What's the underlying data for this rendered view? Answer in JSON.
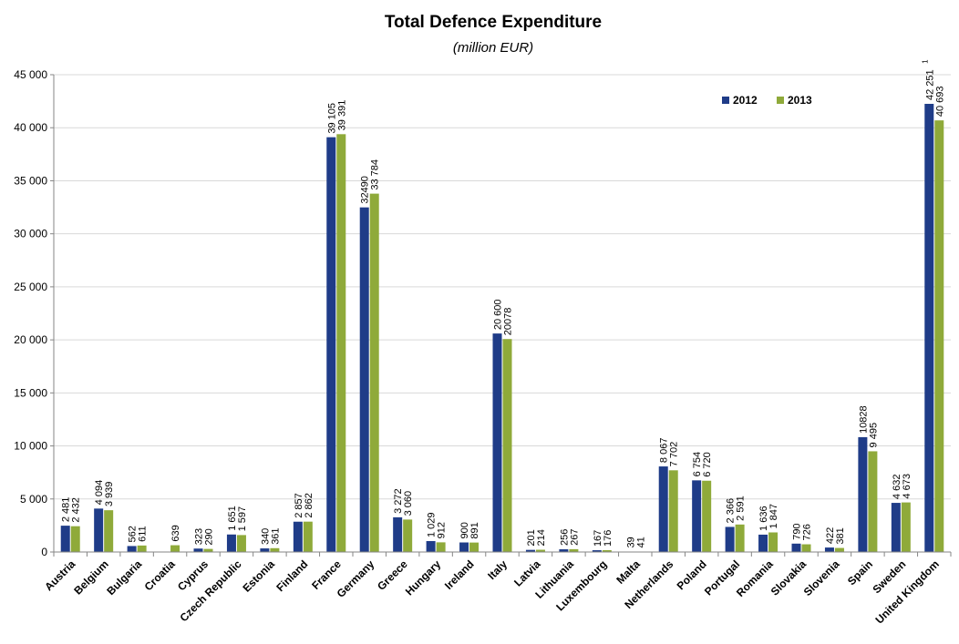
{
  "chart_data": {
    "type": "bar",
    "title": "Total Defence Expenditure",
    "subtitle": "(million EUR)",
    "xlabel": "",
    "ylabel": "",
    "ylim": [
      0,
      45000
    ],
    "yticks": [
      "0",
      "5 000",
      "10 000",
      "15 000",
      "20 000",
      "25 000",
      "30 000",
      "35 000",
      "40 000",
      "45 000"
    ],
    "grid": true,
    "legend_position": "top-right",
    "categories": [
      "Austria",
      "Belgium",
      "Bulgaria",
      "Croatia",
      "Cyprus",
      "Czech Republic",
      "Estonia",
      "Finland",
      "France",
      "Germany",
      "Greece",
      "Hungary",
      "Ireland",
      "Italy",
      "Latvia",
      "Lithuania",
      "Luxembourg",
      "Malta",
      "Netherlands",
      "Poland",
      "Portugal",
      "Romania",
      "Slovakia",
      "Slovenia",
      "Spain",
      "Sweden",
      "United Kingdom"
    ],
    "series": [
      {
        "name": "2012",
        "color": "#1f3c88",
        "values": [
          2481,
          4094,
          562,
          null,
          323,
          1651,
          340,
          2857,
          39105,
          32490,
          3272,
          1029,
          900,
          20600,
          201,
          256,
          167,
          39,
          8067,
          6754,
          2366,
          1636,
          790,
          422,
          10828,
          4632,
          42251
        ],
        "labels": [
          "2 481",
          "4 094",
          "562",
          "",
          "323",
          "1 651",
          "340",
          "2 857",
          "39 105",
          "32490",
          "3 272",
          "1 029",
          "900",
          "20 600",
          "201",
          "256",
          "167",
          "39",
          "8 067",
          "6 754",
          "2 366",
          "1 636",
          "790",
          "422",
          "10828",
          "4 632",
          "42 251"
        ]
      },
      {
        "name": "2013",
        "color": "#8faa3a",
        "values": [
          2432,
          3939,
          611,
          639,
          290,
          1597,
          361,
          2862,
          39391,
          33784,
          3060,
          912,
          891,
          20078,
          214,
          267,
          176,
          41,
          7702,
          6720,
          2591,
          1847,
          726,
          381,
          9495,
          4673,
          40693
        ],
        "labels": [
          "2 432",
          "3 939",
          "611",
          "639",
          "290",
          "1 597",
          "361",
          "2 862",
          "39 391",
          "33 784",
          "3 060",
          "912",
          "891",
          "20078",
          "214",
          "267",
          "176",
          "41",
          "7 702",
          "6 720",
          "2 591",
          "1 847",
          "726",
          "381",
          "9 495",
          "4 673",
          "40 693"
        ]
      }
    ],
    "annotations": [
      {
        "category": "United Kingdom",
        "series": "2012",
        "text": "1"
      }
    ]
  }
}
